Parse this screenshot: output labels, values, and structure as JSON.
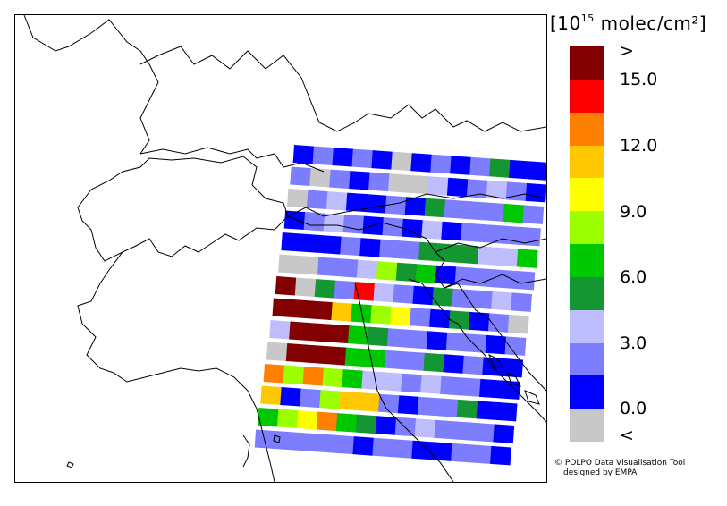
{
  "colorbar": {
    "unit_prefix": "[10",
    "unit_exp": "15",
    "unit_suffix": " molec/cm²]",
    "labels": [
      ">",
      "15.0",
      "12.0",
      "9.0",
      "6.0",
      "3.0",
      "0.0",
      "<"
    ],
    "segments": [
      "#820000",
      "#ff0000",
      "#ff8000",
      "#ffc800",
      "#ffff00",
      "#9bff00",
      "#00c800",
      "#149632",
      "#bebeff",
      "#7d7dff",
      "#0000ff",
      "#c8c8c8"
    ]
  },
  "footer": {
    "line1": "© POLPO Data Visualisation Tool",
    "line2": "designed by EMPA"
  },
  "swath": {
    "tilt_deg": 4,
    "rows": [
      [
        10,
        9,
        10,
        9,
        10,
        11,
        10,
        9,
        10,
        9,
        7,
        10,
        10
      ],
      [
        9,
        11,
        9,
        10,
        9,
        11,
        11,
        8,
        10,
        9,
        8,
        9,
        10
      ],
      [
        11,
        9,
        8,
        10,
        10,
        9,
        10,
        7,
        9,
        9,
        9,
        6,
        9
      ],
      [
        10,
        9,
        8,
        9,
        10,
        9,
        10,
        8,
        10,
        9,
        9,
        9,
        9
      ],
      [
        10,
        10,
        10,
        9,
        10,
        9,
        9,
        7,
        7,
        7,
        8,
        8,
        6
      ],
      [
        11,
        11,
        9,
        9,
        8,
        5,
        7,
        6,
        10,
        9,
        9,
        9,
        9
      ],
      [
        0,
        11,
        7,
        9,
        1,
        8,
        9,
        10,
        7,
        9,
        9,
        8,
        9
      ],
      [
        0,
        0,
        0,
        3,
        6,
        5,
        4,
        9,
        10,
        7,
        10,
        9,
        11
      ],
      [
        8,
        0,
        0,
        0,
        6,
        7,
        9,
        9,
        10,
        9,
        9,
        10,
        9
      ],
      [
        11,
        0,
        0,
        0,
        6,
        6,
        9,
        9,
        7,
        10,
        9,
        10,
        10
      ],
      [
        2,
        5,
        2,
        5,
        6,
        8,
        8,
        9,
        8,
        9,
        9,
        10,
        10
      ],
      [
        3,
        10,
        9,
        5,
        3,
        3,
        9,
        10,
        9,
        9,
        7,
        10,
        10
      ],
      [
        6,
        5,
        4,
        2,
        6,
        7,
        10,
        9,
        8,
        9,
        9,
        9,
        10
      ],
      [
        9,
        9,
        9,
        9,
        9,
        10,
        9,
        9,
        10,
        10,
        9,
        9,
        10
      ]
    ]
  }
}
